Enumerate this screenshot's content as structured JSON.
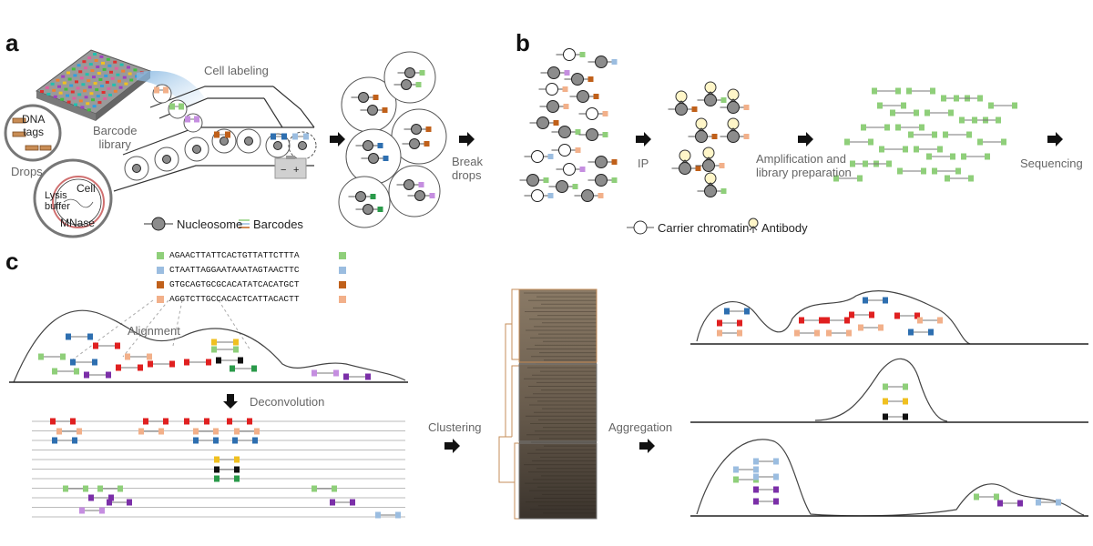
{
  "panels": {
    "a": {
      "letter": "a",
      "labels": {
        "cell_labeling": "Cell labeling",
        "barcode_library": "Barcode\nlibrary",
        "dna_tags": "DNA\ntags",
        "drops": "Drops",
        "lysis_buffer": "Lysis\nbuffer",
        "cell": "Cell",
        "mnase": "MNase",
        "break_drops": "Break\ndrops",
        "nucleosome": "Nucleosome",
        "barcodes": "Barcodes",
        "minus": "−",
        "plus": "+"
      }
    },
    "b": {
      "letter": "b",
      "labels": {
        "ip": "IP",
        "amplification": "Amplification and\nlibrary preparation",
        "sequencing": "Sequencing",
        "carrier_chromatin": "Carrier chromatin",
        "antibody": "Antibody"
      }
    },
    "c": {
      "letter": "c",
      "labels": {
        "alignment": "Alignment",
        "deconvolution": "Deconvolution",
        "clustering": "Clustering",
        "aggregation": "Aggregation"
      },
      "sequences": [
        {
          "text": "AGAACTTATTCACTGTTATTCTTTA",
          "color": "#8fcf7a"
        },
        {
          "text": "CTAATTAGGAATAAATAGTAACTTC",
          "color": "#9bbde0"
        },
        {
          "text": "GTGCAGTGCGCACATATCACATGCT",
          "color": "#c0601a"
        },
        {
          "text": "AGGTCTTGCCACACTCATTACACTT",
          "color": "#f2b08a"
        }
      ]
    }
  },
  "colors": {
    "nucleosome_fill": "#8c8c8c",
    "nucleosome_stroke": "#333333",
    "barcode_green": "#8fcf7a",
    "barcode_blue": "#9bbde0",
    "barcode_orange": "#c0601a",
    "barcode_peach": "#f2b08a",
    "barcode_red": "#e02020",
    "barcode_purple": "#7b2fa8",
    "barcode_yellow": "#f0c020",
    "barcode_black": "#111111",
    "barcode_darkgreen": "#2a9a4a",
    "barcode_darkblue": "#2e6fb0",
    "barcode_violet": "#c58ee0",
    "arrow": "#111111"
  },
  "icons": {
    "arrow": "right-arrow-icon",
    "down_arrow": "down-arrow-icon",
    "antibody": "antibody-icon",
    "carrier_chromatin": "carrier-chromatin-icon",
    "nucleosome": "nucleosome-icon",
    "battery": "battery-icon",
    "plate": "barcode-plate-icon"
  }
}
